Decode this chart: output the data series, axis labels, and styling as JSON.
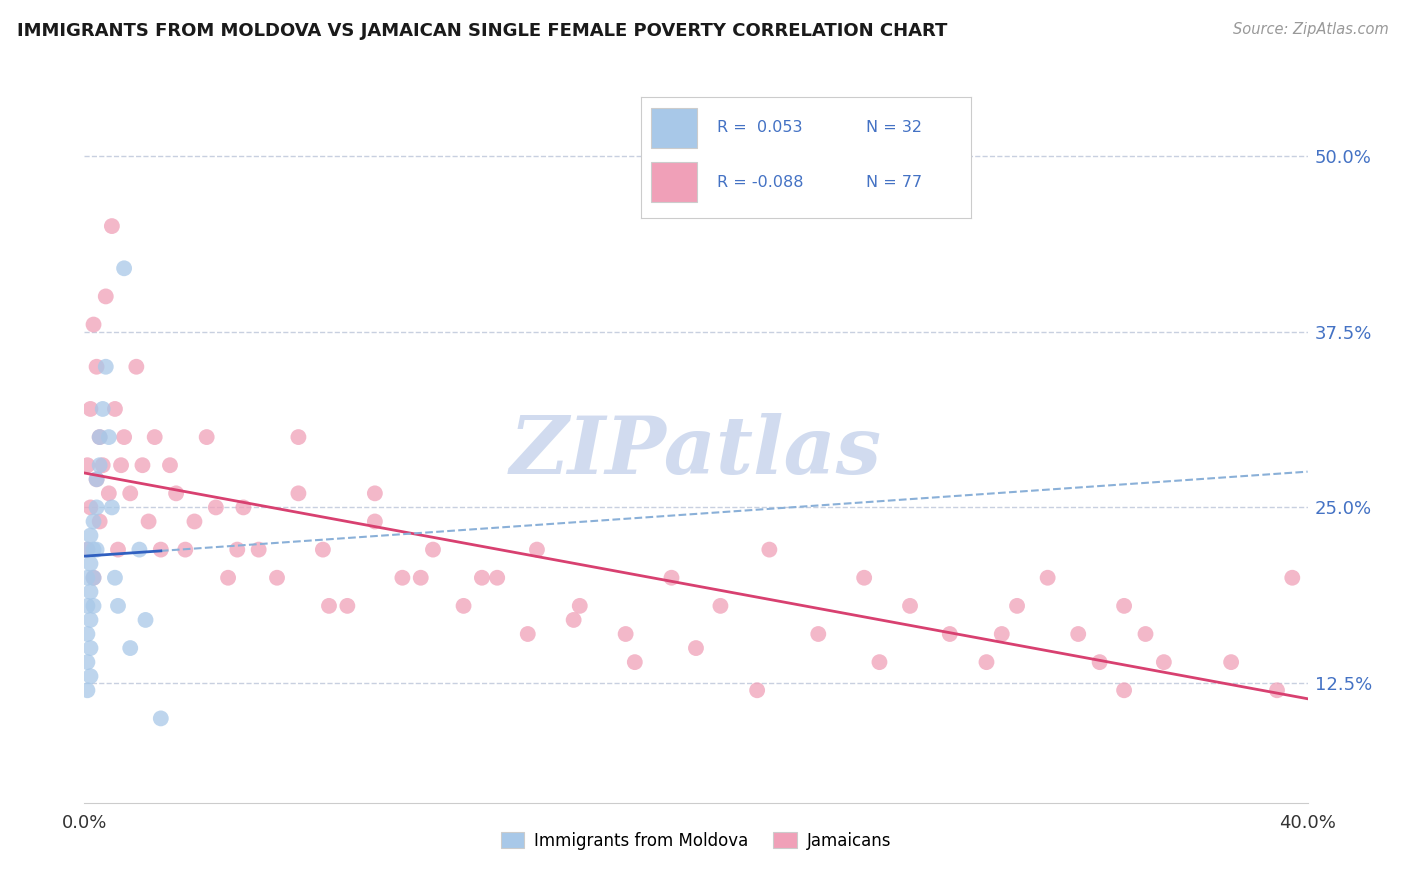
{
  "title": "IMMIGRANTS FROM MOLDOVA VS JAMAICAN SINGLE FEMALE POVERTY CORRELATION CHART",
  "source": "Source: ZipAtlas.com",
  "ylabel": "Single Female Poverty",
  "xlim": [
    0.0,
    0.4
  ],
  "ylim": [
    0.04,
    0.56
  ],
  "yticks": [
    0.125,
    0.25,
    0.375,
    0.5
  ],
  "ytick_labels": [
    "12.5%",
    "25.0%",
    "37.5%",
    "50.0%"
  ],
  "color_moldova": "#a8c8e8",
  "color_jamaica": "#f0a0b8",
  "trendline_color_moldova_solid": "#3060c0",
  "trendline_color_moldova_dashed": "#8ab0d8",
  "trendline_color_jamaica": "#d84070",
  "watermark": "ZIPatlas",
  "watermark_color": "#c8d8f0",
  "background_color": "#ffffff",
  "grid_color": "#c8d0e0",
  "moldova_x": [
    0.001,
    0.001,
    0.001,
    0.001,
    0.001,
    0.001,
    0.002,
    0.002,
    0.002,
    0.002,
    0.002,
    0.002,
    0.003,
    0.003,
    0.003,
    0.003,
    0.004,
    0.004,
    0.004,
    0.005,
    0.005,
    0.006,
    0.007,
    0.008,
    0.009,
    0.01,
    0.011,
    0.013,
    0.015,
    0.018,
    0.02,
    0.025
  ],
  "moldova_y": [
    0.22,
    0.2,
    0.18,
    0.16,
    0.14,
    0.12,
    0.23,
    0.21,
    0.19,
    0.17,
    0.15,
    0.13,
    0.24,
    0.22,
    0.2,
    0.18,
    0.27,
    0.25,
    0.22,
    0.3,
    0.28,
    0.32,
    0.35,
    0.3,
    0.25,
    0.2,
    0.18,
    0.42,
    0.15,
    0.22,
    0.17,
    0.1
  ],
  "jamaica_x": [
    0.001,
    0.001,
    0.002,
    0.002,
    0.003,
    0.003,
    0.004,
    0.004,
    0.005,
    0.005,
    0.006,
    0.007,
    0.008,
    0.009,
    0.01,
    0.011,
    0.012,
    0.013,
    0.015,
    0.017,
    0.019,
    0.021,
    0.023,
    0.025,
    0.028,
    0.03,
    0.033,
    0.036,
    0.04,
    0.043,
    0.047,
    0.052,
    0.057,
    0.063,
    0.07,
    0.078,
    0.086,
    0.095,
    0.104,
    0.114,
    0.124,
    0.135,
    0.148,
    0.162,
    0.177,
    0.192,
    0.208,
    0.224,
    0.24,
    0.255,
    0.27,
    0.283,
    0.295,
    0.305,
    0.315,
    0.325,
    0.332,
    0.34,
    0.347,
    0.353,
    0.07,
    0.095,
    0.13,
    0.16,
    0.2,
    0.05,
    0.08,
    0.11,
    0.145,
    0.18,
    0.22,
    0.26,
    0.3,
    0.34,
    0.375,
    0.39,
    0.395
  ],
  "jamaica_y": [
    0.28,
    0.22,
    0.32,
    0.25,
    0.38,
    0.2,
    0.35,
    0.27,
    0.3,
    0.24,
    0.28,
    0.4,
    0.26,
    0.45,
    0.32,
    0.22,
    0.28,
    0.3,
    0.26,
    0.35,
    0.28,
    0.24,
    0.3,
    0.22,
    0.28,
    0.26,
    0.22,
    0.24,
    0.3,
    0.25,
    0.2,
    0.25,
    0.22,
    0.2,
    0.26,
    0.22,
    0.18,
    0.24,
    0.2,
    0.22,
    0.18,
    0.2,
    0.22,
    0.18,
    0.16,
    0.2,
    0.18,
    0.22,
    0.16,
    0.2,
    0.18,
    0.16,
    0.14,
    0.18,
    0.2,
    0.16,
    0.14,
    0.18,
    0.16,
    0.14,
    0.3,
    0.26,
    0.2,
    0.17,
    0.15,
    0.22,
    0.18,
    0.2,
    0.16,
    0.14,
    0.12,
    0.14,
    0.16,
    0.12,
    0.14,
    0.12,
    0.2
  ]
}
